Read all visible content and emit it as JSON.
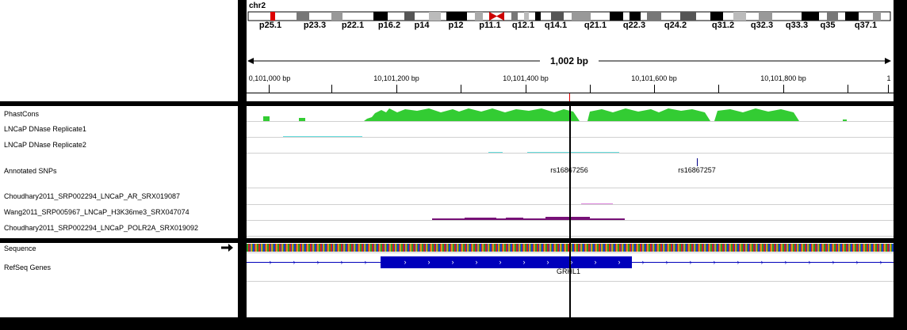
{
  "header": {
    "chromosome": "chr2",
    "span_label": "1,002 bp",
    "cytobands": [
      "p25.1",
      "p23.3",
      "p22.1",
      "p16.2",
      "p14",
      "p12",
      "p11.1",
      "q12.1",
      "q14.1",
      "q21.1",
      "q22.3",
      "q24.2",
      "q31.2",
      "q32.3",
      "q33.3",
      "q35",
      "q37.1"
    ],
    "ruler_ticks": [
      "0,101,000 bp",
      "10,101,200 bp",
      "10,101,400 bp",
      "10,101,600 bp",
      "10,101,800 bp",
      "1"
    ]
  },
  "tracks": {
    "data_tracks": [
      "PhastCons",
      "LNCaP DNase Replicate1",
      "LNCaP DNase Replicate2",
      "Annotated SNPs",
      "Choudhary2011_SRP002294_LNCaP_AR_SRX019087",
      "Wang2011_SRP005967_LNCaP_H3K36me3_SRX047074",
      "Choudhary2011_SRP002294_LNCaP_POLR2A_SRX019092"
    ],
    "feature_tracks": [
      "Sequence",
      "RefSeq Genes"
    ]
  },
  "snps": [
    "rs16867256",
    "rs16867257"
  ],
  "gene": "GRHL1",
  "colors": {
    "phastcons": "#33cc33",
    "dnase": "#66dddd",
    "h3k36": "#dd88dd",
    "polr2a": "#771177",
    "gene": "#0000bb",
    "locus_marker": "#dd0000"
  }
}
